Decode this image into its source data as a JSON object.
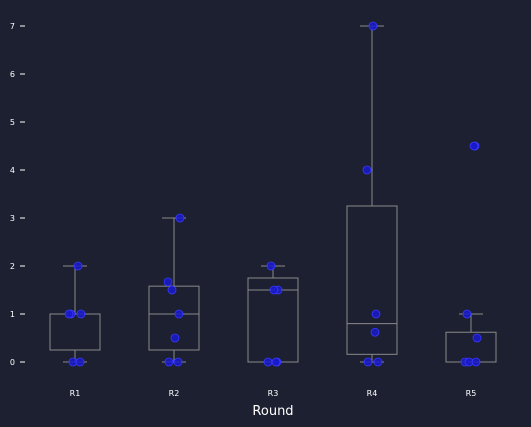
{
  "chart_data": {
    "type": "box",
    "title": "",
    "xlabel": "Round",
    "ylabel": "",
    "categories": [
      "R1",
      "R2",
      "R3",
      "R4",
      "R5"
    ],
    "ylim": [
      -0.3,
      7.2
    ],
    "yticks": [
      0,
      1,
      2,
      3,
      4,
      5,
      6,
      7
    ],
    "grid": false,
    "legend": "none",
    "boxes": [
      {
        "category": "R1",
        "whisker_low": 0,
        "q1": 0.25,
        "median": 1.0,
        "q3": 1.0,
        "whisker_high": 2.0
      },
      {
        "category": "R2",
        "whisker_low": 0,
        "q1": 0.25,
        "median": 1.0,
        "q3": 1.58,
        "whisker_high": 3.0
      },
      {
        "category": "R3",
        "whisker_low": 0,
        "q1": 0.0,
        "median": 1.5,
        "q3": 1.75,
        "whisker_high": 2.0
      },
      {
        "category": "R4",
        "whisker_low": 0,
        "q1": 0.16,
        "median": 0.8,
        "q3": 3.25,
        "whisker_high": 7.0
      },
      {
        "category": "R5",
        "whisker_low": 0,
        "q1": 0.0,
        "median": 0.0,
        "q3": 0.62,
        "whisker_high": 1.0
      }
    ],
    "points": [
      {
        "category": "R1",
        "values": [
          2.0,
          1.0,
          1.0,
          1.0,
          0.0,
          0.0
        ]
      },
      {
        "category": "R2",
        "values": [
          3.0,
          1.67,
          1.5,
          1.0,
          0.5,
          0.0,
          0.0
        ]
      },
      {
        "category": "R3",
        "values": [
          2.0,
          1.5,
          1.5,
          0.0,
          0.0,
          0.0
        ]
      },
      {
        "category": "R4",
        "values": [
          7.0,
          4.0,
          1.0,
          0.62,
          0.0,
          0.0
        ]
      },
      {
        "category": "R5",
        "values": [
          4.5,
          4.5,
          1.0,
          0.5,
          0.0,
          0.0,
          0.0
        ]
      }
    ],
    "colors": {
      "background": "#1c2030",
      "box_stroke": "#8a8a8a",
      "point_fill": "#1a1acc",
      "point_stroke": "#3a3aff",
      "text": "#ffffff"
    }
  }
}
